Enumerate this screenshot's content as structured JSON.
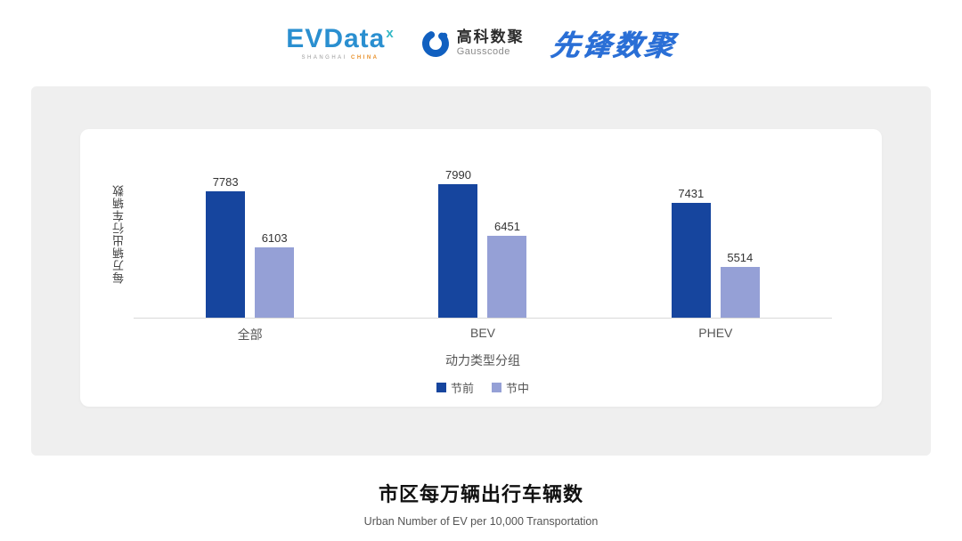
{
  "header": {
    "evdata": {
      "name": "EVData",
      "sup": "x",
      "sub_left": "SHANGHAI ",
      "sub_right": "CHINA"
    },
    "gausscode": {
      "cn": "高科数聚",
      "en": "Gausscode"
    },
    "xianfeng": "先锋数聚"
  },
  "chart_data": {
    "type": "bar",
    "categories": [
      "全部",
      "BEV",
      "PHEV"
    ],
    "series": [
      {
        "name": "节前",
        "color": "#16459e",
        "values": [
          7783,
          7990,
          7431
        ]
      },
      {
        "name": "节中",
        "color": "#95a0d6",
        "values": [
          6103,
          6451,
          5514
        ]
      }
    ],
    "xlabel": "动力类型分组",
    "ylabel": "每万辆出行车辆数",
    "ylim": [
      4000,
      8400
    ],
    "legend_position": "bottom",
    "grid": false
  },
  "footer": {
    "title": "市区每万辆出行车辆数",
    "subtitle": "Urban Number of EV per 10,000 Transportation"
  },
  "colors": {
    "accent_dark_blue": "#16459e",
    "accent_light_blue": "#95a0d6",
    "panel_gray": "#efefef"
  }
}
